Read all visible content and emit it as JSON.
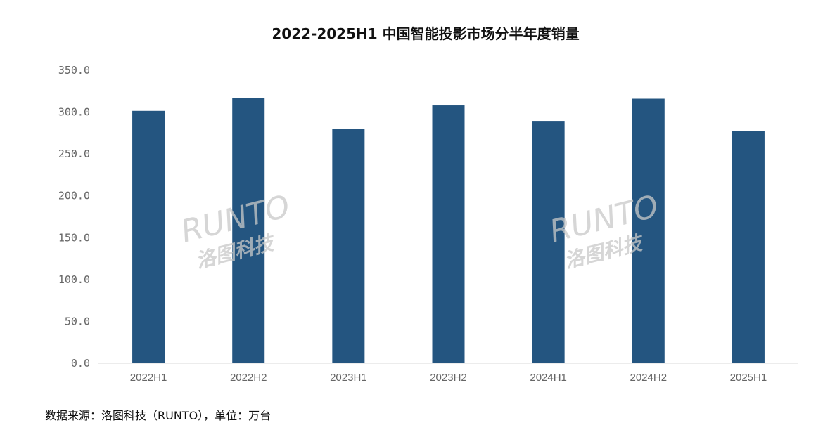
{
  "chart_data": {
    "type": "bar",
    "title": "2022-2025H1 中国智能投影市场分半年度销量",
    "categories": [
      "2022H1",
      "2022H2",
      "2023H1",
      "2023H2",
      "2024H1",
      "2024H2",
      "2025H1"
    ],
    "values": [
      301.5,
      317.0,
      279.5,
      308.0,
      289.5,
      316.0,
      277.5
    ],
    "ylim": [
      0,
      350
    ],
    "yticks": [
      "0.0",
      "50.0",
      "100.0",
      "150.0",
      "200.0",
      "250.0",
      "300.0",
      "350.0"
    ],
    "grid": false,
    "legend": "none",
    "bar_color": "#245580"
  },
  "source_note": "数据来源：洛图科技（RUNTO），单位：万台",
  "watermark": {
    "latin": "RUNTO",
    "chinese": "洛图科技"
  }
}
